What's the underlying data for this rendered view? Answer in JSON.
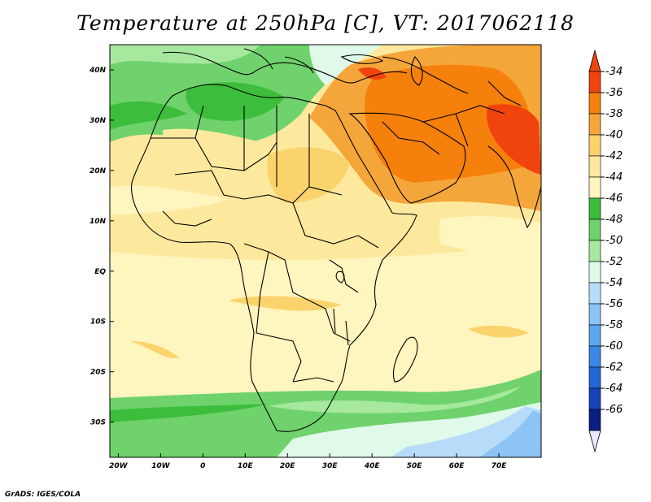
{
  "title": "Temperature at 250hPa [C], VT: 2017062118",
  "credit": "GrADS: IGES/COLA",
  "map": {
    "lon_range": [
      -22,
      80
    ],
    "lat_range": [
      -37,
      45
    ],
    "lon_ticks": [
      {
        "lon": -20,
        "label": "20W"
      },
      {
        "lon": -10,
        "label": "10W"
      },
      {
        "lon": 0,
        "label": "0"
      },
      {
        "lon": 10,
        "label": "10E"
      },
      {
        "lon": 20,
        "label": "20E"
      },
      {
        "lon": 30,
        "label": "30E"
      },
      {
        "lon": 40,
        "label": "40E"
      },
      {
        "lon": 50,
        "label": "50E"
      },
      {
        "lon": 60,
        "label": "60E"
      },
      {
        "lon": 70,
        "label": "70E"
      }
    ],
    "lat_ticks": [
      {
        "lat": 40,
        "label": "40N"
      },
      {
        "lat": 30,
        "label": "30N"
      },
      {
        "lat": 20,
        "label": "20N"
      },
      {
        "lat": 10,
        "label": "10N"
      },
      {
        "lat": 0,
        "label": "EQ"
      },
      {
        "lat": -10,
        "label": "10S"
      },
      {
        "lat": -20,
        "label": "20S"
      },
      {
        "lat": -30,
        "label": "30S"
      }
    ]
  },
  "colorbar": {
    "labels": [
      "-34",
      "-36",
      "-38",
      "-40",
      "-42",
      "-44",
      "-46",
      "-48",
      "-50",
      "-52",
      "-54",
      "-56",
      "-58",
      "-60",
      "-62",
      "-64",
      "-66"
    ],
    "colors": [
      "#f0440f",
      "#f5800b",
      "#f5a63a",
      "#fbd36c",
      "#fde99d",
      "#fff5be",
      "#3cbe3c",
      "#6fd26c",
      "#a6e89e",
      "#dffae8",
      "#b7dcfa",
      "#8cc4f5",
      "#5ea6ee",
      "#3a87e6",
      "#2566d6",
      "#1743b8",
      "#0a1f80"
    ]
  },
  "colors": {
    "frame": "#000000",
    "border": "#000000"
  }
}
